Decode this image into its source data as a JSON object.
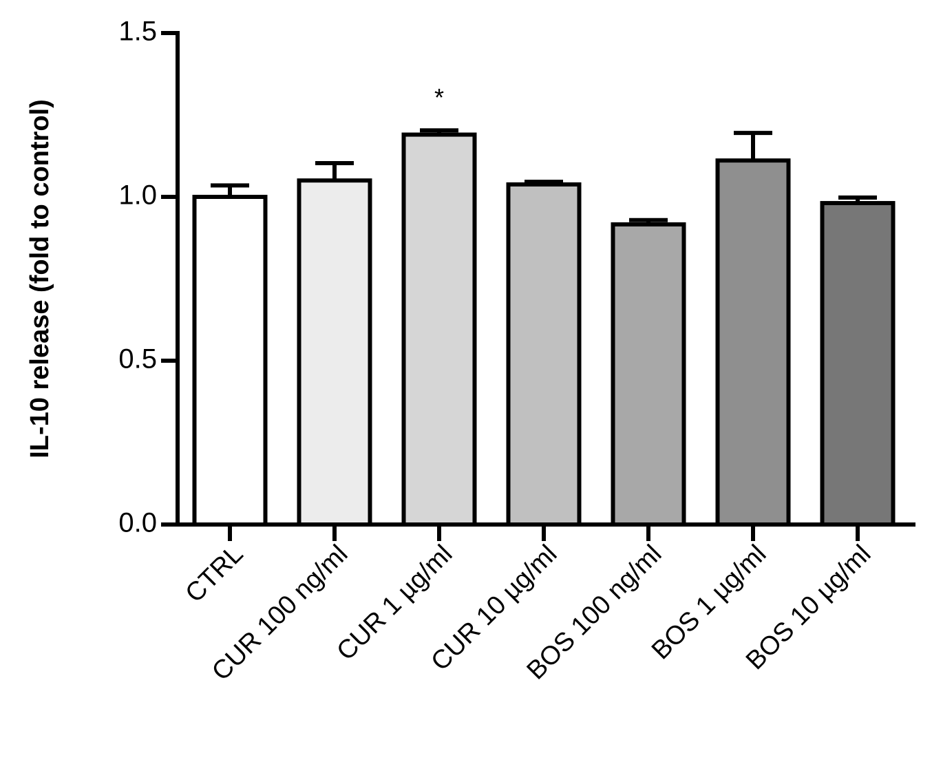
{
  "chart_data": {
    "type": "bar",
    "y_label": "IL-10 release (fold to control)",
    "categories": [
      "CTRL",
      "CUR 100 ng/ml",
      "CUR 1 µg/ml",
      "CUR 10 µg/ml",
      "BOS 100 ng/ml",
      "BOS 1 µg/ml",
      "BOS 10 µg/ml"
    ],
    "values": [
      1.0,
      1.05,
      1.19,
      1.038,
      0.916,
      1.111,
      0.981
    ],
    "errors": [
      0.035,
      0.053,
      0.013,
      0.008,
      0.013,
      0.084,
      0.017
    ],
    "colors": [
      "#ffffff",
      "#ececec",
      "#d6d6d6",
      "#c0c0c0",
      "#a8a8a8",
      "#8f8f8f",
      "#777777"
    ],
    "annotations": [
      {
        "text": "*",
        "category": "CUR 1 µg/ml"
      }
    ],
    "ylim": [
      0,
      1.5
    ],
    "yticks": [
      {
        "value": 0,
        "label": "0.0"
      },
      0.5,
      {
        "value": 1,
        "label": "1.0"
      },
      1.5
    ]
  }
}
